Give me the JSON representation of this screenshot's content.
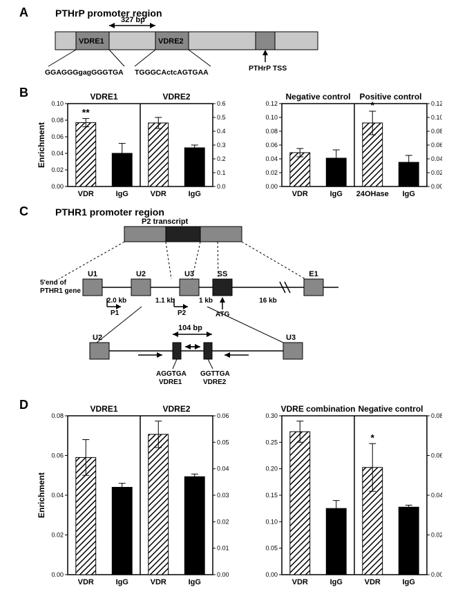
{
  "panelA": {
    "label": "A",
    "title": "PTHrP promoter region",
    "vdre1": "VDRE1",
    "vdre2": "VDRE2",
    "span": "327 bp",
    "seq1": "GGAGGGgagGGGTGA",
    "seq2": "TGGGCActcAGTGAA",
    "tss": "PTHrP TSS"
  },
  "panelB": {
    "label": "B",
    "leftTitles": [
      "VDRE1",
      "VDRE2"
    ],
    "rightTitles": [
      "Negative control",
      "Positive control"
    ],
    "yLabel": "Enrichment",
    "leftAxis1": {
      "max": 0.1,
      "ticks": [
        "0.00",
        "0.02",
        "0.04",
        "0.06",
        "0.08",
        "0.10"
      ]
    },
    "leftAxis2": {
      "max": 0.6,
      "ticks": [
        "0.0",
        "0.1",
        "0.2",
        "0.3",
        "0.4",
        "0.5",
        "0.6"
      ]
    },
    "rightAxis1": {
      "max": 0.12,
      "ticks": [
        "0.00",
        "0.02",
        "0.04",
        "0.06",
        "0.08",
        "0.10",
        "0.12"
      ]
    },
    "rightAxis2": {
      "max": 0.12,
      "ticks": [
        "0.00",
        "0.02",
        "0.04",
        "0.06",
        "0.08",
        "0.10",
        "0.12"
      ]
    },
    "leftVals": {
      "v1": 0.077,
      "e1": 0.005,
      "v2": 0.04,
      "e2": 0.012,
      "v3": 0.46,
      "e3": 0.04,
      "v4": 0.28,
      "e4": 0.02
    },
    "rightVals": {
      "v1": 0.049,
      "e1": 0.006,
      "v2": 0.041,
      "e2": 0.012,
      "v3": 0.092,
      "e3": 0.017,
      "v4": 0.035,
      "e4": 0.01
    },
    "catLeft": [
      "VDR",
      "IgG",
      "VDR",
      "IgG"
    ],
    "catRight": [
      "VDR",
      "IgG",
      "24OHase",
      "IgG"
    ],
    "sig1": "**",
    "sig2": "*"
  },
  "panelC": {
    "label": "C",
    "title": "PTHR1 promoter region",
    "p2t": "P2 transcript",
    "gene5": "5'end of\nPTHR1 gene",
    "boxes": [
      "U1",
      "U2",
      "U3",
      "SS",
      "E1"
    ],
    "gaps": [
      "2.0 kb",
      "1.1 kb",
      "1 kb",
      "16 kb"
    ],
    "p1": "P1",
    "p2": "P2",
    "atg": "ATG",
    "span2": "104 bp",
    "vdre1s": "AGGTGA",
    "vdre1l": "VDRE1",
    "vdre2s": "GGTTGA",
    "vdre2l": "VDRE2",
    "u2": "U2",
    "u3": "U3"
  },
  "panelD": {
    "label": "D",
    "leftTitles": [
      "VDRE1",
      "VDRE2"
    ],
    "rightTitles": [
      "VDRE combination",
      "Negative control"
    ],
    "yLabel": "Enrichment",
    "leftAxis1": {
      "max": 0.08,
      "ticks": [
        "0.00",
        "0.02",
        "0.04",
        "0.06",
        "0.08"
      ]
    },
    "leftAxis2": {
      "max": 0.06,
      "ticks": [
        "0.00",
        "0.01",
        "0.02",
        "0.03",
        "0.04",
        "0.05",
        "0.06"
      ]
    },
    "rightAxis1": {
      "max": 0.3,
      "ticks": [
        "0.00",
        "0.05",
        "0.10",
        "0.15",
        "0.20",
        "0.25",
        "0.30"
      ]
    },
    "rightAxis2": {
      "max": 0.08,
      "ticks": [
        "0.00",
        "0.02",
        "0.04",
        "0.06",
        "0.08"
      ]
    },
    "leftVals": {
      "v1": 0.059,
      "e1": 0.009,
      "v2": 0.044,
      "e2": 0.002,
      "v3": 0.053,
      "e3": 0.005,
      "v4": 0.037,
      "e4": 0.001
    },
    "rightVals": {
      "v1": 0.27,
      "e1": 0.02,
      "v2": 0.125,
      "e2": 0.015,
      "v3": 0.054,
      "e3": 0.012,
      "v4": 0.034,
      "e4": 0.001
    },
    "catLeft": [
      "VDR",
      "IgG",
      "VDR",
      "IgG"
    ],
    "catRight": [
      "VDR",
      "IgG",
      "VDR",
      "IgG"
    ],
    "sig": "*"
  },
  "style": {
    "hatch": "#555",
    "barStroke": "#000",
    "promoterFill": "#c8c8c8",
    "promoterDark": "#888",
    "axis": "#000"
  }
}
